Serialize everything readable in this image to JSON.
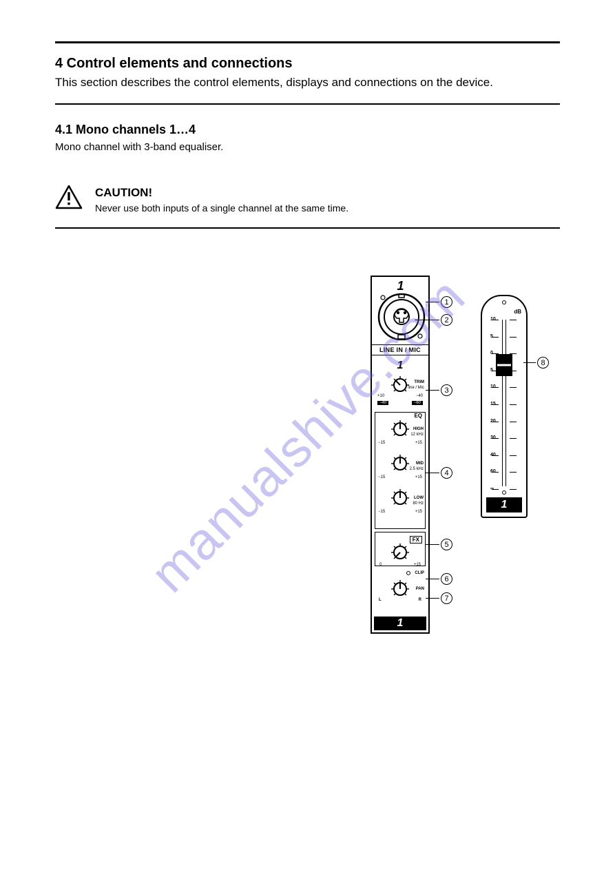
{
  "watermark": "manualshive.com",
  "header": {
    "title": "4 Control elements and connections",
    "subtitle": "This section describes the control elements, displays and connections on the device."
  },
  "mono_section": {
    "heading": "4.1 Mono channels 1…4",
    "subheading": "Mono channel with 3-band equaliser."
  },
  "caution": {
    "label": "CAUTION!",
    "body": "Never use both inputs of a single channel at the same time."
  },
  "callouts": {
    "c1": "1",
    "c2": "2",
    "c3": "3",
    "c4": "4",
    "c5": "5",
    "c6": "6",
    "c7": "7",
    "c8": "8"
  },
  "strip": {
    "ch": "1",
    "input_label": "LINE IN / MIC",
    "sub_ch": "1",
    "trim": {
      "label": "TRIM",
      "sub": "line / Mic",
      "left_top": "+10",
      "right_top": "−40",
      "left_box": "−40",
      "right_box": "−60"
    },
    "eq": {
      "label": "EQ",
      "high": {
        "label": "HIGH",
        "freq": "12 kHz",
        "lo": "−15",
        "hi": "+15"
      },
      "mid": {
        "label": "MID",
        "freq": "2.5 kHz",
        "lo": "−15",
        "hi": "+15"
      },
      "low": {
        "label": "LOW",
        "freq": "80 Hz",
        "lo": "−15",
        "hi": "+15"
      }
    },
    "fx": {
      "label": "FX",
      "lo": "0",
      "hi": "+15"
    },
    "pan": {
      "clip": "CLIP",
      "label": "PAN",
      "l": "L",
      "r": "R"
    },
    "badge": "1"
  },
  "fader": {
    "db_label": "dB",
    "scale": [
      "10",
      "5",
      "0",
      "5",
      "10",
      "15",
      "20",
      "30",
      "40",
      "60",
      "∞"
    ],
    "badge": "1"
  },
  "colors": {
    "rule": "#000000",
    "bg": "#ffffff",
    "wm": "rgba(100,90,220,0.35)"
  }
}
